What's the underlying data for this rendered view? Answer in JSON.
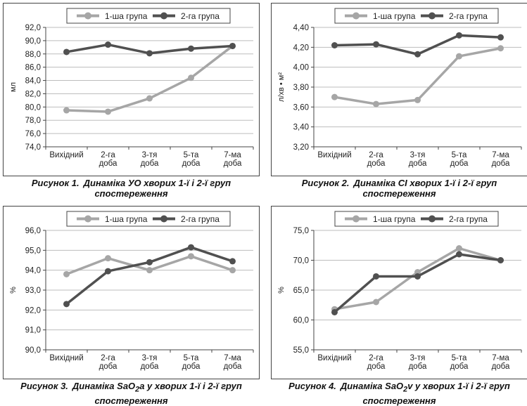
{
  "legend": {
    "series1": "1-ша група",
    "series2": "2-га група"
  },
  "colors": {
    "series1": "#a6a6a6",
    "series2": "#505050",
    "grid": "#bdbdbd",
    "frame": "#444444"
  },
  "categories_lines": [
    [
      "Вихідний"
    ],
    [
      "2-га",
      "доба"
    ],
    [
      "3-тя",
      "доба"
    ],
    [
      "5-та",
      "доба"
    ],
    [
      "7-ма",
      "доба"
    ]
  ],
  "chart_data": [
    {
      "type": "line",
      "ylabel": "мл",
      "ylim": [
        74.0,
        92.0
      ],
      "yticks": [
        "74,0",
        "76,0",
        "78,0",
        "80,0",
        "82,0",
        "84,0",
        "86,0",
        "88,0",
        "90,0",
        "92,0"
      ],
      "categories": [
        "Вихідний",
        "2-га доба",
        "3-тя доба",
        "5-та доба",
        "7-ма доба"
      ],
      "series": [
        {
          "name": "1-ша група",
          "values": [
            79.5,
            79.3,
            81.3,
            84.4,
            89.2
          ]
        },
        {
          "name": "2-га група",
          "values": [
            88.3,
            89.4,
            88.1,
            88.8,
            89.2
          ]
        }
      ],
      "legend_position": "top",
      "grid": true,
      "caption_label": "Рисунок 1.",
      "caption_text": "Динаміка УО хворих 1-ї і 2-ї груп",
      "caption_line2": "спостереження"
    },
    {
      "type": "line",
      "ylabel": "л/хв • м²",
      "ylim": [
        3.2,
        4.4
      ],
      "yticks": [
        "3,20",
        "3,40",
        "3,60",
        "3,80",
        "4,00",
        "4,20",
        "4,40"
      ],
      "categories": [
        "Вихідний",
        "2-га доба",
        "3-тя доба",
        "5-та доба",
        "7-ма доба"
      ],
      "series": [
        {
          "name": "1-ша група",
          "values": [
            3.7,
            3.63,
            3.67,
            4.11,
            4.19
          ]
        },
        {
          "name": "2-га група",
          "values": [
            4.22,
            4.23,
            4.13,
            4.32,
            4.3
          ]
        }
      ],
      "legend_position": "top",
      "grid": true,
      "caption_label": "Рисунок 2.",
      "caption_text": "Динаміка СІ хворих 1-ї і 2-ї груп",
      "caption_line2": "спостереження"
    },
    {
      "type": "line",
      "ylabel": "%",
      "ylim": [
        90.0,
        96.0
      ],
      "yticks": [
        "90,0",
        "91,0",
        "92,0",
        "93,0",
        "94,0",
        "95,0",
        "96,0"
      ],
      "categories": [
        "Вихідний",
        "2-га доба",
        "3-тя доба",
        "5-та доба",
        "7-ма доба"
      ],
      "series": [
        {
          "name": "1-ша група",
          "values": [
            93.8,
            94.6,
            94.0,
            94.7,
            94.0
          ]
        },
        {
          "name": "2-га група",
          "values": [
            92.3,
            93.95,
            94.4,
            95.15,
            94.45
          ]
        }
      ],
      "legend_position": "top",
      "grid": true,
      "caption_label": "Рисунок 3.",
      "caption_text": "Динаміка SaO",
      "caption_sub": "2",
      "caption_rest": "a у хворих 1-ї і 2-ї груп",
      "caption_line2": "спостереження"
    },
    {
      "type": "line",
      "ylabel": "%",
      "ylim": [
        55.0,
        75.0
      ],
      "yticks": [
        "55,0",
        "60,0",
        "65,0",
        "70,0",
        "75,0"
      ],
      "categories": [
        "Вихідний",
        "2-га доба",
        "3-тя доба",
        "5-та доба",
        "7-ма доба"
      ],
      "series": [
        {
          "name": "1-ша група",
          "values": [
            61.8,
            63.0,
            68.0,
            72.0,
            70.0
          ]
        },
        {
          "name": "2-га група",
          "values": [
            61.3,
            67.3,
            67.3,
            71.0,
            70.0
          ]
        }
      ],
      "legend_position": "top",
      "grid": true,
      "caption_label": "Рисунок 4.",
      "caption_text": "Динаміка SaO",
      "caption_sub": "2",
      "caption_rest": "v у хворих 1-ї і 2-ї груп",
      "caption_line2": "спостереження"
    }
  ]
}
